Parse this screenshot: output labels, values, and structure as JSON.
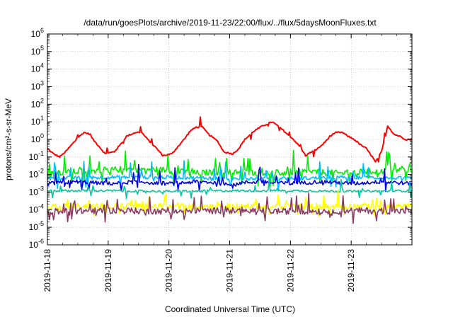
{
  "chart_data": {
    "type": "line",
    "title": "/data/run/goesPlots/archive/2019-11-23/22:00/flux/../flux/5daysMoonFluxes.txt",
    "xlabel": "Coordinated Universal Time (UTC)",
    "ylabel": "protons/cm²-s-sr-MeV",
    "y_scale": "log",
    "y_exponent_range": [
      -6,
      6
    ],
    "y_tick_labels": [
      "10-6",
      "10-5",
      "10-4",
      "10-3",
      "10-2",
      "10-1",
      "100",
      "101",
      "102",
      "103",
      "104",
      "105",
      "106"
    ],
    "x_range_days": [
      0,
      6
    ],
    "x_tick_labels": [
      "2019-11-18",
      "2019-11-19",
      "2019-11-20",
      "2019-11-21",
      "2019-11-22",
      "2019-11-23"
    ],
    "grid": true,
    "legend": "none",
    "series": [
      {
        "color": "#ff0000",
        "x": [
          0,
          0.1,
          0.2,
          0.3,
          0.4,
          0.5,
          0.6,
          0.7,
          0.75,
          0.85,
          0.95,
          1.1,
          1.2,
          1.3,
          1.45,
          1.55,
          1.65,
          1.8,
          1.9,
          2.05,
          2.15,
          2.25,
          2.35,
          2.45,
          2.55,
          2.65,
          2.8,
          2.9,
          3.05,
          3.15,
          3.25,
          3.4,
          3.55,
          3.7,
          3.82,
          3.95,
          4.05,
          4.15,
          4.25,
          4.35,
          4.45,
          4.55,
          4.65,
          4.75,
          4.85,
          4.95,
          5.05,
          5.15,
          5.25,
          5.35,
          5.4,
          5.5,
          5.6,
          5.7,
          5.8,
          5.9,
          6.0
        ],
        "y": [
          0.3,
          0.15,
          0.1,
          0.2,
          0.5,
          1.2,
          2.5,
          2.0,
          1.0,
          0.4,
          0.15,
          0.2,
          0.5,
          1.5,
          2.5,
          2.5,
          1.0,
          0.3,
          0.12,
          0.15,
          0.4,
          1.0,
          3.0,
          5.0,
          5.0,
          2.0,
          0.8,
          0.2,
          0.15,
          0.3,
          1.0,
          3.0,
          6.0,
          10.0,
          5.0,
          2.0,
          1.0,
          0.4,
          0.12,
          0.2,
          0.3,
          0.6,
          1.5,
          2.5,
          2.5,
          1.5,
          1.0,
          0.5,
          0.3,
          0.1,
          0.05,
          0.2,
          6.0,
          2.0,
          1.5,
          1.0,
          1.0
        ]
      },
      {
        "color": "#00ee00",
        "x": [
          0,
          0.6,
          1.2,
          1.8,
          2.4,
          3.0,
          3.6,
          4.2,
          4.8,
          5.4,
          6.0
        ],
        "y": [
          0.012,
          0.015,
          0.02,
          0.02,
          0.012,
          0.015,
          0.012,
          0.015,
          0.012,
          0.015,
          0.02
        ]
      },
      {
        "color": "#00bbff",
        "x": [
          0,
          1.0,
          2.0,
          3.0,
          4.0,
          5.0,
          6.0
        ],
        "y": [
          0.006,
          0.007,
          0.007,
          0.006,
          0.006,
          0.007,
          0.006
        ]
      },
      {
        "color": "#0000dd",
        "x": [
          0,
          0.5,
          1.0,
          1.5,
          2.0,
          2.5,
          3.0,
          3.5,
          4.0,
          4.5,
          5.0,
          5.5,
          6.0
        ],
        "y": [
          0.003,
          0.004,
          0.003,
          0.004,
          0.003,
          0.004,
          0.003,
          0.004,
          0.003,
          0.004,
          0.003,
          0.004,
          0.003
        ]
      },
      {
        "color": "#00c8a0",
        "x": [
          0,
          1.0,
          2.0,
          3.0,
          4.0,
          5.0,
          6.0
        ],
        "y": [
          0.0012,
          0.0012,
          0.0011,
          0.0012,
          0.0012,
          0.0011,
          0.0012
        ]
      },
      {
        "color": "#ffff00",
        "x": [
          0,
          1.0,
          2.0,
          3.0,
          4.0,
          5.0,
          6.0
        ],
        "y": [
          0.00015,
          0.00016,
          0.00015,
          0.00016,
          0.00015,
          0.00016,
          0.00015
        ]
      },
      {
        "color": "#8b3a62",
        "x": [
          0,
          1.0,
          2.0,
          3.0,
          4.0,
          5.0,
          6.0
        ],
        "y": [
          8e-05,
          9e-05,
          8e-05,
          9e-05,
          8e-05,
          9e-05,
          8e-05
        ]
      }
    ]
  }
}
